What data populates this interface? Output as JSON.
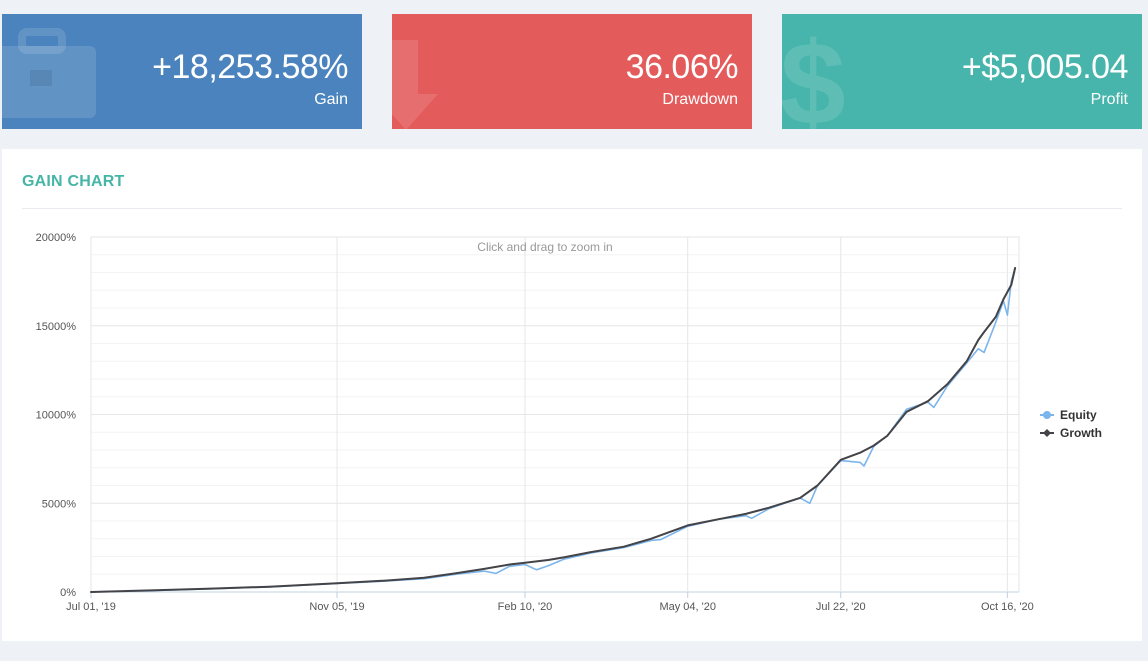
{
  "cards": {
    "gain": {
      "value": "+18,253.58%",
      "label": "Gain",
      "color": "#4a83bd",
      "icon": "briefcase-icon"
    },
    "drawdown": {
      "value": "36.06%",
      "label": "Drawdown",
      "color": "#e35b5a",
      "icon": "arrow-down-icon"
    },
    "profit": {
      "value": "+$5,005.04",
      "label": "Profit",
      "color": "#47b5ab",
      "icon": "dollar-icon"
    }
  },
  "panel": {
    "title": "GAIN CHART"
  },
  "chart_data": {
    "type": "line",
    "zoom_hint": "Click and drag to zoom in",
    "x_ticks": [
      "Jul 01, '19",
      "Nov 05, '19",
      "Feb 10, '20",
      "May 04, '20",
      "Jul 22, '20",
      "Oct 16, '20"
    ],
    "y_ticks": [
      "0%",
      "5000%",
      "10000%",
      "15000%",
      "20000%"
    ],
    "ylim": [
      0,
      20000
    ],
    "xlim": [
      "2019-07-01",
      "2020-10-22"
    ],
    "grid": true,
    "legend_position": "right",
    "series": [
      {
        "name": "Equity",
        "color": "#7cb5ec",
        "points": [
          [
            "2019-07-01",
            0
          ],
          [
            "2019-08-01",
            80
          ],
          [
            "2019-09-01",
            180
          ],
          [
            "2019-10-01",
            290
          ],
          [
            "2019-11-05",
            480
          ],
          [
            "2019-12-01",
            620
          ],
          [
            "2019-12-20",
            750
          ],
          [
            "2020-01-05",
            1000
          ],
          [
            "2020-01-20",
            1180
          ],
          [
            "2020-01-26",
            1050
          ],
          [
            "2020-02-02",
            1450
          ],
          [
            "2020-02-10",
            1550
          ],
          [
            "2020-02-16",
            1250
          ],
          [
            "2020-02-22",
            1480
          ],
          [
            "2020-03-01",
            1850
          ],
          [
            "2020-03-15",
            2200
          ],
          [
            "2020-04-01",
            2500
          ],
          [
            "2020-04-15",
            2900
          ],
          [
            "2020-04-20",
            2950
          ],
          [
            "2020-05-04",
            3700
          ],
          [
            "2020-05-20",
            4100
          ],
          [
            "2020-06-03",
            4300
          ],
          [
            "2020-06-06",
            4150
          ],
          [
            "2020-06-15",
            4700
          ],
          [
            "2020-07-01",
            5300
          ],
          [
            "2020-07-06",
            5000
          ],
          [
            "2020-07-10",
            6000
          ],
          [
            "2020-07-22",
            7400
          ],
          [
            "2020-08-01",
            7300
          ],
          [
            "2020-08-03",
            7100
          ],
          [
            "2020-08-08",
            8200
          ],
          [
            "2020-08-15",
            8800
          ],
          [
            "2020-08-25",
            10300
          ],
          [
            "2020-09-05",
            10700
          ],
          [
            "2020-09-08",
            10400
          ],
          [
            "2020-09-15",
            11600
          ],
          [
            "2020-09-25",
            12900
          ],
          [
            "2020-10-01",
            13700
          ],
          [
            "2020-10-04",
            13500
          ],
          [
            "2020-10-10",
            15200
          ],
          [
            "2020-10-14",
            16400
          ],
          [
            "2020-10-16",
            15600
          ],
          [
            "2020-10-18",
            17500
          ],
          [
            "2020-10-20",
            18253.58
          ]
        ]
      },
      {
        "name": "Growth",
        "color": "#434348",
        "points": [
          [
            "2019-07-01",
            0
          ],
          [
            "2019-08-01",
            90
          ],
          [
            "2019-09-01",
            190
          ],
          [
            "2019-10-01",
            300
          ],
          [
            "2019-11-05",
            490
          ],
          [
            "2019-12-01",
            650
          ],
          [
            "2019-12-20",
            800
          ],
          [
            "2020-01-05",
            1050
          ],
          [
            "2020-01-20",
            1300
          ],
          [
            "2020-02-02",
            1550
          ],
          [
            "2020-02-10",
            1650
          ],
          [
            "2020-02-22",
            1800
          ],
          [
            "2020-03-01",
            1950
          ],
          [
            "2020-03-15",
            2250
          ],
          [
            "2020-04-01",
            2550
          ],
          [
            "2020-04-15",
            3000
          ],
          [
            "2020-05-04",
            3750
          ],
          [
            "2020-05-20",
            4100
          ],
          [
            "2020-06-03",
            4400
          ],
          [
            "2020-06-15",
            4750
          ],
          [
            "2020-07-01",
            5300
          ],
          [
            "2020-07-10",
            6000
          ],
          [
            "2020-07-22",
            7450
          ],
          [
            "2020-08-01",
            7850
          ],
          [
            "2020-08-08",
            8250
          ],
          [
            "2020-08-15",
            8800
          ],
          [
            "2020-08-25",
            10150
          ],
          [
            "2020-09-05",
            10750
          ],
          [
            "2020-09-15",
            11700
          ],
          [
            "2020-09-25",
            13000
          ],
          [
            "2020-10-01",
            14200
          ],
          [
            "2020-10-04",
            14650
          ],
          [
            "2020-10-10",
            15500
          ],
          [
            "2020-10-14",
            16500
          ],
          [
            "2020-10-18",
            17300
          ],
          [
            "2020-10-20",
            18253.58
          ]
        ]
      }
    ]
  }
}
